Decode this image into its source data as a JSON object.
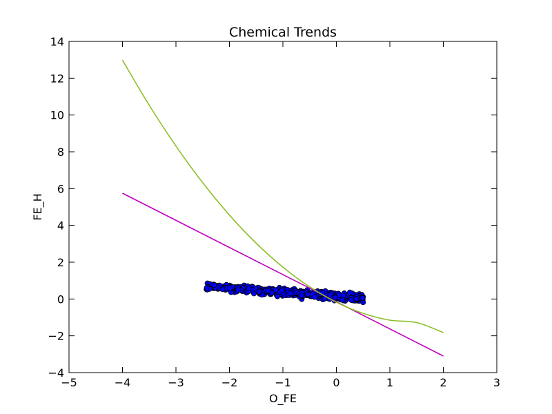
{
  "chart_data": {
    "type": "scatter",
    "title": "Chemical Trends",
    "xlabel": "O_FE",
    "ylabel": "FE_H",
    "xlim": [
      -5,
      3
    ],
    "ylim": [
      -4,
      14
    ],
    "xticks": [
      -5,
      -4,
      -3,
      -2,
      -1,
      0,
      1,
      2,
      3
    ],
    "yticks": [
      -4,
      -2,
      0,
      2,
      4,
      6,
      8,
      10,
      12,
      14
    ],
    "xtick_labels": [
      "−5",
      "−4",
      "−3",
      "−2",
      "−1",
      "0",
      "1",
      "2",
      "3"
    ],
    "ytick_labels": [
      "−4",
      "−2",
      "0",
      "2",
      "4",
      "6",
      "8",
      "10",
      "12",
      "14"
    ],
    "grid": false,
    "legend": "none",
    "scatter_color": "#0000ff",
    "scatter_edge_color": "#000000",
    "scatter": {
      "x_range": [
        -2.45,
        0.5
      ],
      "trend_slope": -0.22,
      "trend_intercept": 0.15,
      "y_spread": 0.38,
      "n_points": 600
    },
    "series": [
      {
        "type": "line",
        "color": "#bf00bf",
        "x": [
          -4,
          2
        ],
        "y": [
          5.75,
          -3.1
        ]
      },
      {
        "type": "line",
        "color": "#8cbf26",
        "x": [
          -4,
          -3.5,
          -3,
          -2.5,
          -2,
          -1.5,
          -1,
          -0.5,
          0,
          0.5,
          1,
          1.5,
          2
        ],
        "y": [
          12.98,
          10.53,
          8.31,
          6.32,
          4.56,
          3.03,
          1.73,
          0.66,
          -0.18,
          -0.78,
          -1.15,
          -1.28,
          -1.82
        ]
      }
    ]
  }
}
